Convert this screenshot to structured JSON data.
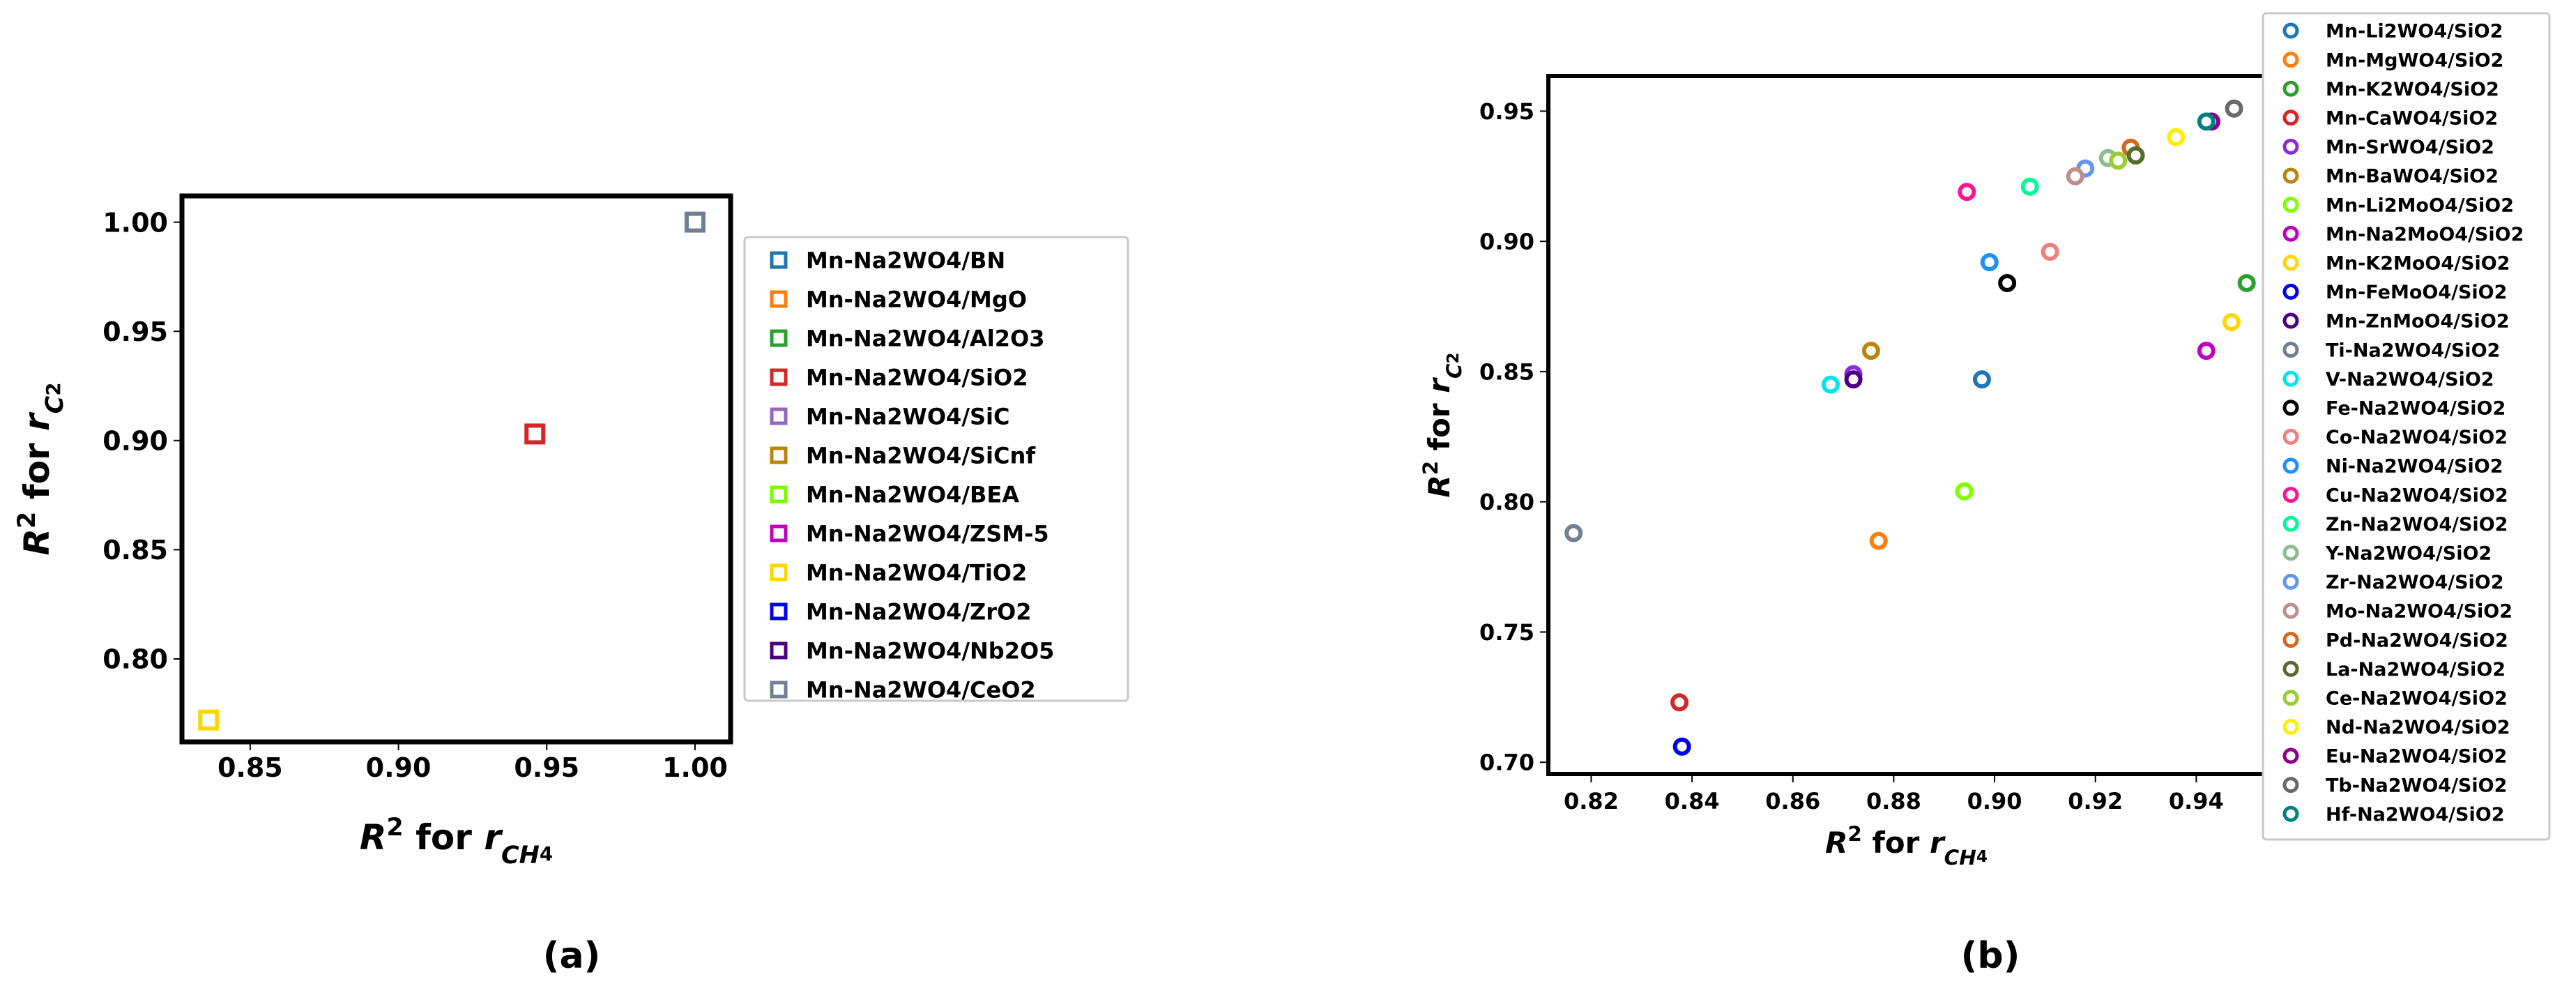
{
  "chart_data": [
    {
      "panel_label": "(a)",
      "type": "scatter",
      "marker": "square",
      "xlim": [
        0.827,
        1.012
      ],
      "ylim": [
        0.762,
        1.012
      ],
      "xticks": [
        "0.85",
        "0.90",
        "0.95",
        "1.00"
      ],
      "yticks": [
        "0.80",
        "0.85",
        "0.90",
        "0.95",
        "1.00"
      ],
      "xlabel": {
        "prefix": "R",
        "sup": "2",
        "middle": " for ",
        "var": "r",
        "sub": "CH",
        "sub2": "4"
      },
      "ylabel": {
        "prefix": "R",
        "sup": "2",
        "middle": " for ",
        "var": "r",
        "sub": "C",
        "sub2": "2"
      },
      "legend_position": "outside-right",
      "series": [
        {
          "name": "Mn-Na2WO4/BN",
          "color": "#1f77b4",
          "x": null,
          "y": null
        },
        {
          "name": "Mn-Na2WO4/MgO",
          "color": "#ff7f0e",
          "x": null,
          "y": null
        },
        {
          "name": "Mn-Na2WO4/Al2O3",
          "color": "#2ca02c",
          "x": null,
          "y": null
        },
        {
          "name": "Mn-Na2WO4/SiO2",
          "color": "#d62728",
          "x": 0.946,
          "y": 0.903
        },
        {
          "name": "Mn-Na2WO4/SiC",
          "color": "#9467bd",
          "x": null,
          "y": null
        },
        {
          "name": "Mn-Na2WO4/SiCnf",
          "color": "#b8860b",
          "x": null,
          "y": null
        },
        {
          "name": "Mn-Na2WO4/BEA",
          "color": "#7cfc00",
          "x": null,
          "y": null
        },
        {
          "name": "Mn-Na2WO4/ZSM-5",
          "color": "#c000c0",
          "x": null,
          "y": null
        },
        {
          "name": "Mn-Na2WO4/TiO2",
          "color": "#ffd700",
          "x": 0.836,
          "y": 0.772
        },
        {
          "name": "Mn-Na2WO4/ZrO2",
          "color": "#0000ff",
          "x": null,
          "y": null
        },
        {
          "name": "Mn-Na2WO4/Nb2O5",
          "color": "#4b0082",
          "x": null,
          "y": null
        },
        {
          "name": "Mn-Na2WO4/CeO2",
          "color": "#708090",
          "x": 1.0,
          "y": 1.0
        }
      ]
    },
    {
      "panel_label": "(b)",
      "type": "scatter",
      "marker": "circle",
      "xlim": [
        0.8115,
        0.9535
      ],
      "ylim": [
        0.6955,
        0.9635
      ],
      "xticks": [
        "0.82",
        "0.84",
        "0.86",
        "0.88",
        "0.90",
        "0.92",
        "0.94"
      ],
      "yticks": [
        "0.70",
        "0.75",
        "0.80",
        "0.85",
        "0.90",
        "0.95"
      ],
      "xlabel": {
        "prefix": "R",
        "sup": "2",
        "middle": " for ",
        "var": "r",
        "sub": "CH",
        "sub2": "4"
      },
      "ylabel": {
        "prefix": "R",
        "sup": "2",
        "middle": " for ",
        "var": "r",
        "sub": "C",
        "sub2": "2"
      },
      "legend_position": "outside-right",
      "series": [
        {
          "name": "Mn-Li2WO4/SiO2",
          "color": "#1f77b4",
          "x": 0.8975,
          "y": 0.847
        },
        {
          "name": "Mn-MgWO4/SiO2",
          "color": "#ff7f0e",
          "x": 0.877,
          "y": 0.785
        },
        {
          "name": "Mn-K2WO4/SiO2",
          "color": "#2ca02c",
          "x": 0.95,
          "y": 0.884
        },
        {
          "name": "Mn-CaWO4/SiO2",
          "color": "#d62728",
          "x": 0.8375,
          "y": 0.723
        },
        {
          "name": "Mn-SrWO4/SiO2",
          "color": "#8a2be2",
          "x": 0.872,
          "y": 0.849
        },
        {
          "name": "Mn-BaWO4/SiO2",
          "color": "#b8860b",
          "x": 0.8755,
          "y": 0.858
        },
        {
          "name": "Mn-Li2MoO4/SiO2",
          "color": "#7fff00",
          "x": 0.894,
          "y": 0.804
        },
        {
          "name": "Mn-Na2MoO4/SiO2",
          "color": "#c000c0",
          "x": 0.942,
          "y": 0.858
        },
        {
          "name": "Mn-K2MoO4/SiO2",
          "color": "#ffd700",
          "x": 0.947,
          "y": 0.869
        },
        {
          "name": "Mn-FeMoO4/SiO2",
          "color": "#0000ee",
          "x": 0.838,
          "y": 0.706
        },
        {
          "name": "Mn-ZnMoO4/SiO2",
          "color": "#4b0082",
          "x": 0.872,
          "y": 0.847
        },
        {
          "name": "Ti-Na2WO4/SiO2",
          "color": "#708090",
          "x": 0.8165,
          "y": 0.788
        },
        {
          "name": "V-Na2WO4/SiO2",
          "color": "#00e5ee",
          "x": 0.8675,
          "y": 0.845
        },
        {
          "name": "Fe-Na2WO4/SiO2",
          "color": "#000000",
          "x": 0.9025,
          "y": 0.884
        },
        {
          "name": "Co-Na2WO4/SiO2",
          "color": "#f08080",
          "x": 0.911,
          "y": 0.896
        },
        {
          "name": "Ni-Na2WO4/SiO2",
          "color": "#1e90ff",
          "x": 0.899,
          "y": 0.892
        },
        {
          "name": "Cu-Na2WO4/SiO2",
          "color": "#ff1493",
          "x": 0.8945,
          "y": 0.919
        },
        {
          "name": "Zn-Na2WO4/SiO2",
          "color": "#00fa9a",
          "x": 0.907,
          "y": 0.921
        },
        {
          "name": "Y-Na2WO4/SiO2",
          "color": "#8fbc8f",
          "x": 0.9225,
          "y": 0.932
        },
        {
          "name": "Zr-Na2WO4/SiO2",
          "color": "#6495ed",
          "x": 0.918,
          "y": 0.928
        },
        {
          "name": "Mo-Na2WO4/SiO2",
          "color": "#bc8f8f",
          "x": 0.916,
          "y": 0.925
        },
        {
          "name": "Pd-Na2WO4/SiO2",
          "color": "#d2691e",
          "x": 0.927,
          "y": 0.936
        },
        {
          "name": "La-Na2WO4/SiO2",
          "color": "#556b2f",
          "x": 0.928,
          "y": 0.933
        },
        {
          "name": "Ce-Na2WO4/SiO2",
          "color": "#9acd32",
          "x": 0.9245,
          "y": 0.931
        },
        {
          "name": "Nd-Na2WO4/SiO2",
          "color": "#ffee00",
          "x": 0.936,
          "y": 0.94
        },
        {
          "name": "Eu-Na2WO4/SiO2",
          "color": "#8b008b",
          "x": 0.943,
          "y": 0.946
        },
        {
          "name": "Tb-Na2WO4/SiO2",
          "color": "#696969",
          "x": 0.9475,
          "y": 0.951
        },
        {
          "name": "Hf-Na2WO4/SiO2",
          "color": "#008080",
          "x": 0.942,
          "y": 0.946
        }
      ]
    }
  ]
}
